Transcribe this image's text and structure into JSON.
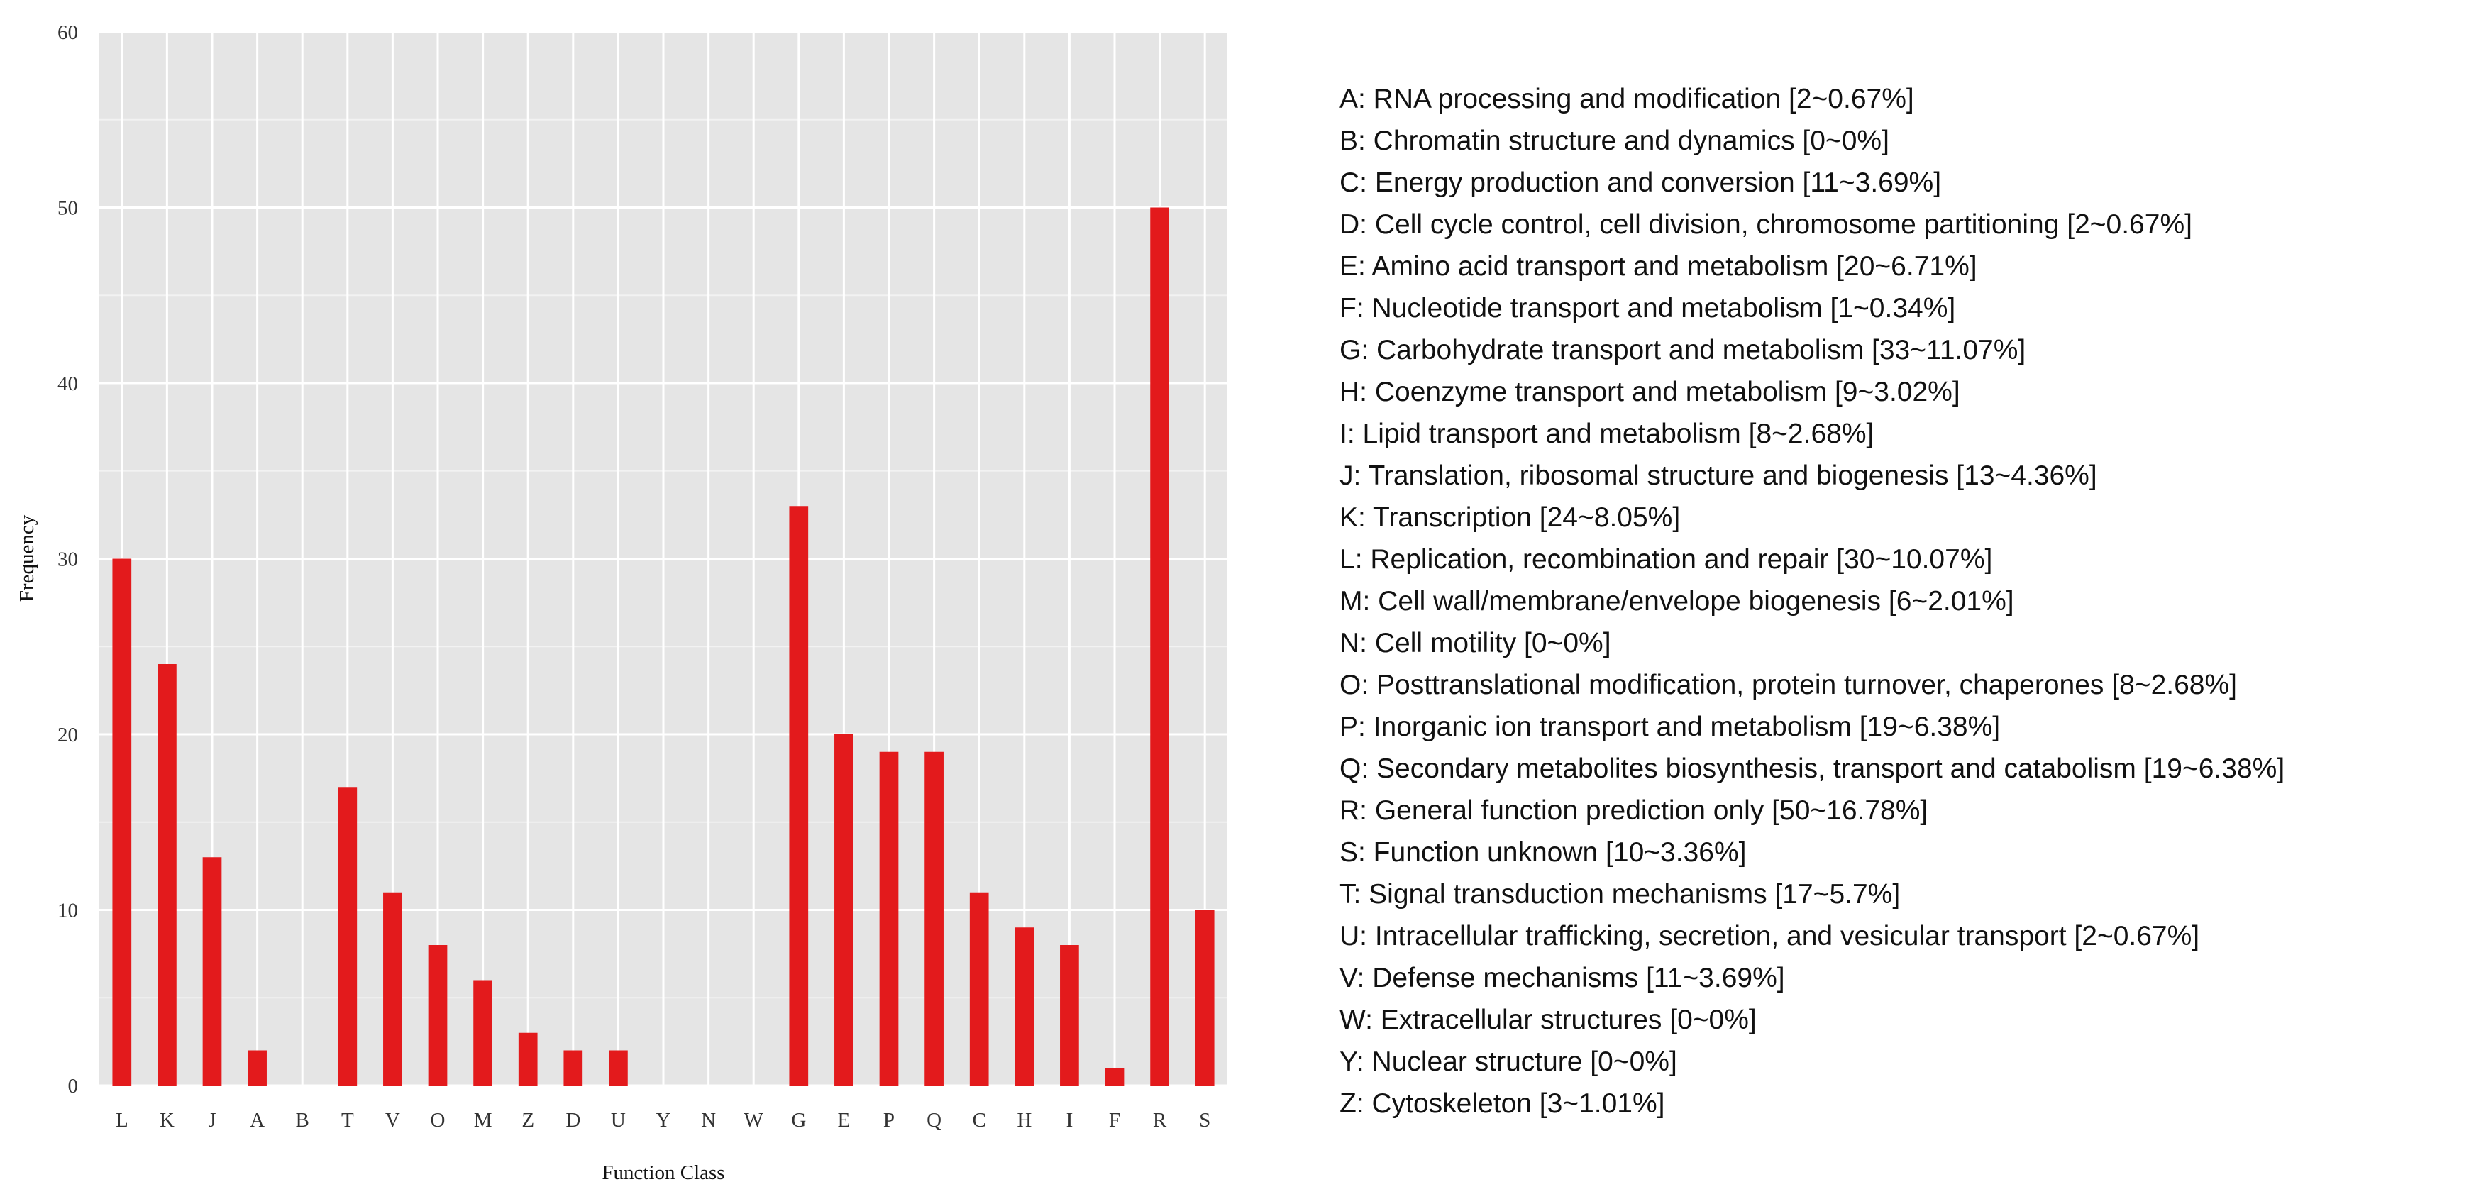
{
  "chart_data": {
    "type": "bar",
    "title": "",
    "xlabel": "Function Class",
    "ylabel": "Frequency",
    "ylim": [
      0,
      60
    ],
    "yticks": [
      0,
      10,
      20,
      30,
      40,
      50,
      60
    ],
    "grid": true,
    "bar_color": "#e31a1c",
    "panel_color": "#e5e5e5",
    "categories": [
      "L",
      "K",
      "J",
      "A",
      "B",
      "T",
      "V",
      "O",
      "M",
      "Z",
      "D",
      "U",
      "Y",
      "N",
      "W",
      "G",
      "E",
      "P",
      "Q",
      "C",
      "H",
      "I",
      "F",
      "R",
      "S"
    ],
    "values": [
      30,
      24,
      13,
      2,
      0,
      17,
      11,
      8,
      6,
      3,
      2,
      2,
      0,
      0,
      0,
      33,
      20,
      19,
      19,
      11,
      9,
      8,
      1,
      50,
      10
    ],
    "legend_position": "right",
    "legend": [
      "A: RNA processing and modification [2~0.67%]",
      "B: Chromatin structure and dynamics [0~0%]",
      "C: Energy production and conversion [11~3.69%]",
      "D: Cell cycle control, cell division, chromosome partitioning [2~0.67%]",
      "E: Amino acid transport and metabolism [20~6.71%]",
      "F: Nucleotide transport and metabolism [1~0.34%]",
      "G: Carbohydrate transport and metabolism [33~11.07%]",
      "H: Coenzyme transport and metabolism [9~3.02%]",
      "I: Lipid transport and metabolism [8~2.68%]",
      "J: Translation, ribosomal structure and biogenesis [13~4.36%]",
      "K: Transcription [24~8.05%]",
      "L: Replication, recombination and repair [30~10.07%]",
      "M: Cell wall/membrane/envelope biogenesis [6~2.01%]",
      "N: Cell motility [0~0%]",
      "O: Posttranslational modification, protein turnover, chaperones [8~2.68%]",
      "P: Inorganic ion transport and metabolism [19~6.38%]",
      "Q: Secondary metabolites biosynthesis, transport and catabolism [19~6.38%]",
      "R: General function prediction only [50~16.78%]",
      "S: Function unknown [10~3.36%]",
      "T: Signal transduction mechanisms [17~5.7%]",
      "U: Intracellular trafficking, secretion, and vesicular transport [2~0.67%]",
      "V: Defense mechanisms [11~3.69%]",
      "W: Extracellular structures [0~0%]",
      "Y: Nuclear structure [0~0%]",
      "Z: Cytoskeleton [3~1.01%]"
    ]
  }
}
